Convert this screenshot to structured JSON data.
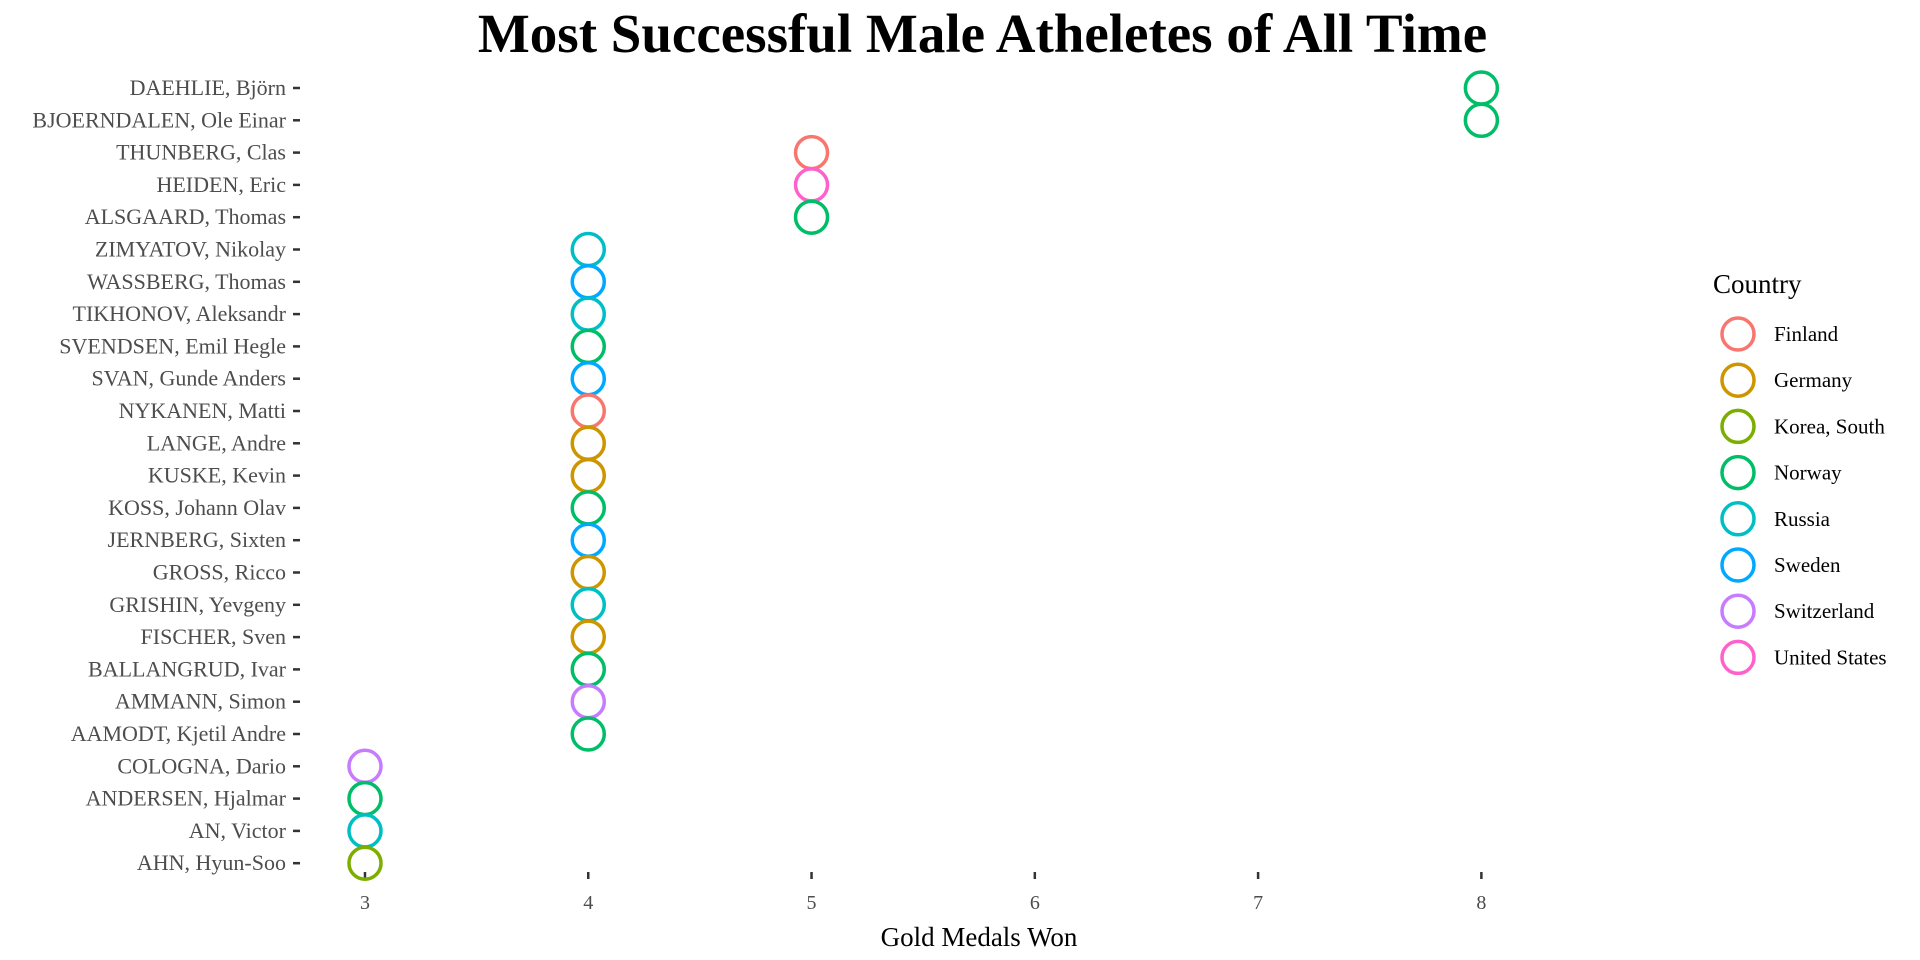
{
  "chart_data": {
    "type": "scatter",
    "title": "Most Successful Male Atheletes of All Time",
    "xlabel": "Gold Medals Won",
    "ylabel": "",
    "xlim": [
      2.7,
      8.8
    ],
    "x_ticks": [
      3,
      4,
      5,
      6,
      7,
      8
    ],
    "grid": false,
    "legend": {
      "title": "Country",
      "position": "right",
      "entries": [
        {
          "name": "Finland",
          "color": "#F8766D"
        },
        {
          "name": "Germany",
          "color": "#CD9600"
        },
        {
          "name": "Korea, South",
          "color": "#7CAE00"
        },
        {
          "name": "Norway",
          "color": "#00BE67"
        },
        {
          "name": "Russia",
          "color": "#00BFC4"
        },
        {
          "name": "Sweden",
          "color": "#00A9FF"
        },
        {
          "name": "Switzerland",
          "color": "#C77CFF"
        },
        {
          "name": "United States",
          "color": "#FF61CC"
        }
      ]
    },
    "points": [
      {
        "athlete": "DAEHLIE, Björn",
        "gold": 8,
        "country": "Norway"
      },
      {
        "athlete": "BJOERNDALEN, Ole Einar",
        "gold": 8,
        "country": "Norway"
      },
      {
        "athlete": "THUNBERG, Clas",
        "gold": 5,
        "country": "Finland"
      },
      {
        "athlete": "HEIDEN, Eric",
        "gold": 5,
        "country": "United States"
      },
      {
        "athlete": "ALSGAARD, Thomas",
        "gold": 5,
        "country": "Norway"
      },
      {
        "athlete": "ZIMYATOV, Nikolay",
        "gold": 4,
        "country": "Russia"
      },
      {
        "athlete": "WASSBERG, Thomas",
        "gold": 4,
        "country": "Sweden"
      },
      {
        "athlete": "TIKHONOV, Aleksandr",
        "gold": 4,
        "country": "Russia"
      },
      {
        "athlete": "SVENDSEN, Emil Hegle",
        "gold": 4,
        "country": "Norway"
      },
      {
        "athlete": "SVAN, Gunde Anders",
        "gold": 4,
        "country": "Sweden"
      },
      {
        "athlete": "NYKANEN, Matti",
        "gold": 4,
        "country": "Finland"
      },
      {
        "athlete": "LANGE, Andre",
        "gold": 4,
        "country": "Germany"
      },
      {
        "athlete": "KUSKE, Kevin",
        "gold": 4,
        "country": "Germany"
      },
      {
        "athlete": "KOSS, Johann Olav",
        "gold": 4,
        "country": "Norway"
      },
      {
        "athlete": "JERNBERG, Sixten",
        "gold": 4,
        "country": "Sweden"
      },
      {
        "athlete": "GROSS, Ricco",
        "gold": 4,
        "country": "Germany"
      },
      {
        "athlete": "GRISHIN, Yevgeny",
        "gold": 4,
        "country": "Russia"
      },
      {
        "athlete": "FISCHER, Sven",
        "gold": 4,
        "country": "Germany"
      },
      {
        "athlete": "BALLANGRUD, Ivar",
        "gold": 4,
        "country": "Norway"
      },
      {
        "athlete": "AMMANN, Simon",
        "gold": 4,
        "country": "Switzerland"
      },
      {
        "athlete": "AAMODT, Kjetil Andre",
        "gold": 4,
        "country": "Norway"
      },
      {
        "athlete": "COLOGNA, Dario",
        "gold": 3,
        "country": "Switzerland"
      },
      {
        "athlete": "ANDERSEN, Hjalmar",
        "gold": 3,
        "country": "Norway"
      },
      {
        "athlete": "AN, Victor",
        "gold": 3,
        "country": "Russia"
      },
      {
        "athlete": "AHN, Hyun-Soo",
        "gold": 3,
        "country": "Korea, South"
      }
    ]
  }
}
